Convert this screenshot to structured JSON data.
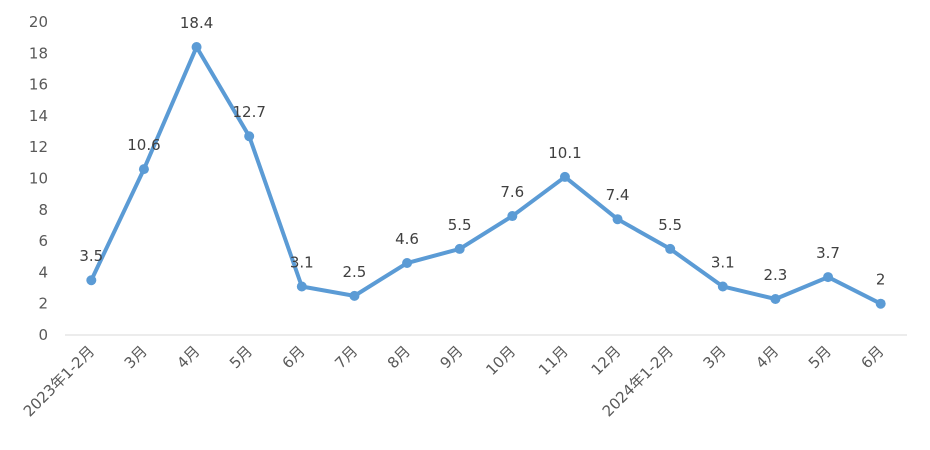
{
  "chart_data": {
    "type": "line",
    "categories": [
      "2023年1-2月",
      "3月",
      "4月",
      "5月",
      "6月",
      "7月",
      "8月",
      "9月",
      "10月",
      "11月",
      "12月",
      "2024年1-2月",
      "3月",
      "4月",
      "5月",
      "6月"
    ],
    "values": [
      3.5,
      10.6,
      18.4,
      12.7,
      3.1,
      2.5,
      4.6,
      5.5,
      7.6,
      10.1,
      7.4,
      5.5,
      3.1,
      2.3,
      3.7,
      2
    ],
    "data_labels": [
      "3.5",
      "10.6",
      "18.4",
      "12.7",
      "3.1",
      "2.5",
      "4.6",
      "5.5",
      "7.6",
      "10.1",
      "7.4",
      "5.5",
      "3.1",
      "2.3",
      "3.7",
      "2"
    ],
    "y_ticks": [
      "0",
      "2",
      "4",
      "6",
      "8",
      "10",
      "12",
      "14",
      "16",
      "18",
      "20"
    ],
    "ylim": [
      0,
      20
    ],
    "y_step": 2,
    "grid": false,
    "legend": "none",
    "title": "",
    "xlabel": "",
    "ylabel": "",
    "colors": {
      "series": "#5b9bd5",
      "axis": "#d9d9d9",
      "text": "#595959"
    }
  }
}
